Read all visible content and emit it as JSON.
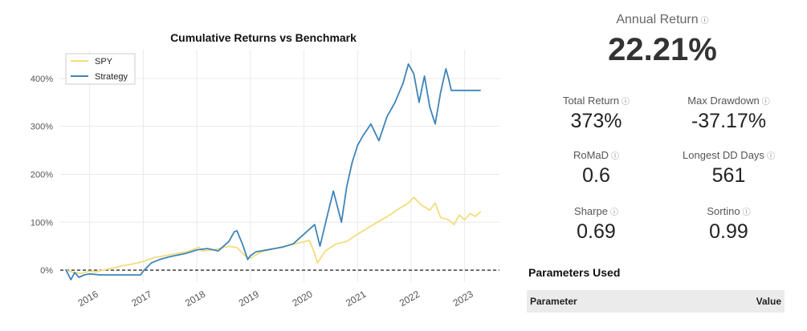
{
  "chart_data": {
    "type": "line",
    "title": "Cumulative Returns vs Benchmark",
    "xlabel": "",
    "ylabel": "",
    "x_ticks": [
      "2016",
      "2017",
      "2018",
      "2019",
      "2020",
      "2021",
      "2022",
      "2023"
    ],
    "y_ticks": [
      "0%",
      "100%",
      "200%",
      "300%",
      "400%"
    ],
    "ylim": [
      -25,
      460
    ],
    "xlim": [
      2015.45,
      2023.65
    ],
    "grid": true,
    "reference_line": {
      "y": 0,
      "style": "dashed",
      "color": "#000000"
    },
    "legend": {
      "position": "top-left",
      "entries": [
        "SPY",
        "Strategy"
      ]
    },
    "series": [
      {
        "name": "SPY",
        "color": "#f3dc7e",
        "x": [
          2015.55,
          2015.7,
          2015.85,
          2016.0,
          2016.1,
          2016.25,
          2016.45,
          2016.65,
          2016.85,
          2017.0,
          2017.2,
          2017.5,
          2017.8,
          2018.05,
          2018.1,
          2018.3,
          2018.6,
          2018.75,
          2018.9,
          2019.0,
          2019.2,
          2019.5,
          2019.8,
          2020.1,
          2020.2,
          2020.25,
          2020.4,
          2020.6,
          2020.8,
          2021.0,
          2021.3,
          2021.6,
          2021.8,
          2021.95,
          2022.05,
          2022.2,
          2022.35,
          2022.45,
          2022.55,
          2022.7,
          2022.8,
          2022.9,
          2023.0,
          2023.1,
          2023.2,
          2023.3
        ],
        "y": [
          0,
          -5,
          -7,
          -2,
          -4,
          0,
          5,
          10,
          14,
          18,
          26,
          32,
          38,
          48,
          40,
          42,
          50,
          47,
          30,
          25,
          38,
          46,
          54,
          62,
          35,
          15,
          40,
          55,
          60,
          75,
          95,
          115,
          130,
          140,
          152,
          135,
          125,
          140,
          110,
          105,
          95,
          115,
          105,
          118,
          112,
          122
        ]
      },
      {
        "name": "Strategy",
        "color": "#3f84b8",
        "x": [
          2015.55,
          2015.65,
          2015.72,
          2015.8,
          2015.9,
          2016.0,
          2016.2,
          2016.5,
          2016.8,
          2016.95,
          2017.0,
          2017.15,
          2017.3,
          2017.5,
          2017.8,
          2018.0,
          2018.2,
          2018.4,
          2018.6,
          2018.7,
          2018.75,
          2018.85,
          2018.95,
          2019.0,
          2019.1,
          2019.3,
          2019.6,
          2019.8,
          2020.0,
          2020.1,
          2020.2,
          2020.3,
          2020.45,
          2020.55,
          2020.7,
          2020.8,
          2020.9,
          2021.0,
          2021.1,
          2021.25,
          2021.4,
          2021.55,
          2021.7,
          2021.85,
          2021.95,
          2022.05,
          2022.15,
          2022.25,
          2022.35,
          2022.45,
          2022.55,
          2022.65,
          2022.7,
          2022.75,
          2023.3
        ],
        "y": [
          2,
          -20,
          -5,
          -15,
          -10,
          -8,
          -10,
          -10,
          -10,
          -10,
          -2,
          15,
          22,
          28,
          35,
          42,
          45,
          40,
          60,
          80,
          82,
          55,
          22,
          30,
          38,
          42,
          48,
          55,
          75,
          85,
          95,
          50,
          120,
          165,
          100,
          175,
          225,
          260,
          280,
          305,
          270,
          320,
          350,
          390,
          430,
          410,
          350,
          405,
          340,
          305,
          370,
          420,
          400,
          375,
          375
        ]
      }
    ]
  },
  "metrics": {
    "annual_return": {
      "label": "Annual Return",
      "value": "22.21%"
    },
    "items": [
      {
        "label": "Total Return",
        "value": "373%"
      },
      {
        "label": "Max Drawdown",
        "value": "-37.17%"
      },
      {
        "label": "RoMaD",
        "value": "0.6"
      },
      {
        "label": "Longest DD Days",
        "value": "561"
      },
      {
        "label": "Sharpe",
        "value": "0.69"
      },
      {
        "label": "Sortino",
        "value": "0.99"
      }
    ],
    "info_glyph": "ⓘ"
  },
  "parameters": {
    "title": "Parameters Used",
    "columns": [
      "Parameter",
      "Value"
    ]
  }
}
